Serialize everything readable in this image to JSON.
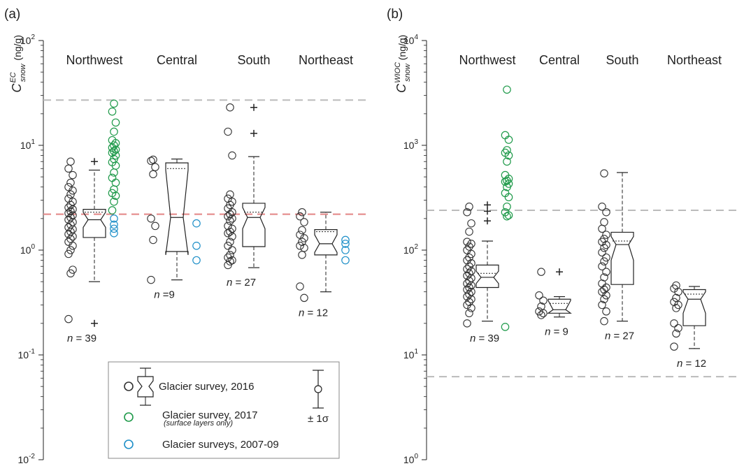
{
  "chart_data": [
    {
      "panel_label": "(a)",
      "type": "box-scatter",
      "ylabel_symbol": "C",
      "ylabel_sub": "snow",
      "ylabel_sup": "EC",
      "ylabel_unit": "(ng/g)",
      "yscale": "log",
      "ylim": [
        0.01,
        100
      ],
      "y_ticks": [
        {
          "base": "10",
          "exp": "-2"
        },
        {
          "base": "10",
          "exp": "-1"
        },
        {
          "base": "10",
          "exp": "0"
        },
        {
          "base": "10",
          "exp": "1"
        },
        {
          "base": "10",
          "exp": "2"
        }
      ],
      "ref_lines": [
        {
          "value": 27,
          "color": "#bbbbbb"
        },
        {
          "value": 2.2,
          "color": "#bbbbbb"
        },
        {
          "value": 2.2,
          "color": "#e88a8a"
        }
      ],
      "regions": [
        {
          "name": "Northwest",
          "n_label": "n = 39",
          "pts2016": [
            7.0,
            6.0,
            5.2,
            4.4,
            4.0,
            3.7,
            3.4,
            3.1,
            2.9,
            2.7,
            2.55,
            2.45,
            2.35,
            2.25,
            2.15,
            2.05,
            1.95,
            1.85,
            1.75,
            1.65,
            1.58,
            1.5,
            1.42,
            1.35,
            1.28,
            1.2,
            1.1,
            1.0,
            0.92,
            0.65,
            0.6,
            0.22
          ],
          "box": {
            "q1": 1.32,
            "median": 1.95,
            "q3": 2.45,
            "mean": 2.3,
            "whisker_low": 0.5,
            "whisker_high": 5.8,
            "notch_low": 1.65,
            "notch_high": 2.3,
            "outliers": [
              7.0,
              0.2
            ]
          },
          "pts2017": [
            25.0,
            21.0,
            16.5,
            13.5,
            11.2,
            10.5,
            10.0,
            9.5,
            9.1,
            8.8,
            8.5,
            8.0,
            7.4,
            6.9,
            6.4,
            5.5,
            4.9,
            4.4,
            3.8,
            3.5,
            3.3,
            2.9,
            2.4
          ],
          "pts0709": [
            2.0,
            1.75,
            1.6,
            1.45
          ]
        },
        {
          "name": "Central",
          "n_label": "n =9",
          "pts2016": [
            7.3,
            7.1,
            6.2,
            5.3,
            2.0,
            1.7,
            1.25,
            0.52
          ],
          "box": {
            "q1": 0.97,
            "median": 2.05,
            "q3": 6.8,
            "mean": 6.0,
            "whisker_low": 0.52,
            "whisker_high": 7.4,
            "notch_low": 0.9,
            "notch_high": 5.8,
            "outliers": []
          },
          "pts2017": [],
          "pts0709": [
            1.8,
            1.1,
            0.8
          ]
        },
        {
          "name": "South",
          "n_label": "n = 27",
          "pts2016": [
            23.0,
            13.5,
            8.0,
            3.4,
            3.1,
            2.9,
            2.7,
            2.5,
            2.3,
            2.2,
            2.1,
            2.0,
            1.9,
            1.7,
            1.6,
            1.5,
            1.45,
            1.35,
            1.2,
            1.1,
            1.0,
            0.9,
            0.85,
            0.8,
            0.78,
            0.72
          ],
          "box": {
            "q1": 1.08,
            "median": 2.05,
            "q3": 2.8,
            "mean": 2.3,
            "whisker_low": 0.68,
            "whisker_high": 7.8,
            "notch_low": 1.6,
            "notch_high": 2.55,
            "outliers": [
              23.0,
              13.0
            ]
          },
          "pts2017": [],
          "pts0709": []
        },
        {
          "name": "Northeast",
          "n_label": "n = 12",
          "pts2016": [
            2.3,
            2.1,
            1.85,
            1.55,
            1.4,
            1.3,
            1.2,
            1.1,
            1.05,
            0.9,
            0.45,
            0.35
          ],
          "box": {
            "q1": 0.9,
            "median": 1.15,
            "q3": 1.57,
            "mean": 1.5,
            "whisker_low": 0.4,
            "whisker_high": 2.3,
            "notch_low": 0.95,
            "notch_high": 1.4,
            "outliers": []
          },
          "pts2017": [],
          "pts0709": [
            1.25,
            1.15,
            1.0,
            0.8
          ]
        }
      ]
    },
    {
      "panel_label": "(b)",
      "type": "box-scatter",
      "ylabel_symbol": "C",
      "ylabel_sub": "snow",
      "ylabel_sup": "WIOC",
      "ylabel_unit": "(ng/g)",
      "yscale": "log",
      "ylim": [
        1,
        10000
      ],
      "y_ticks": [
        {
          "base": "10",
          "exp": "0"
        },
        {
          "base": "10",
          "exp": "1"
        },
        {
          "base": "10",
          "exp": "2"
        },
        {
          "base": "10",
          "exp": "3"
        },
        {
          "base": "10",
          "exp": "4"
        }
      ],
      "ref_lines": [
        {
          "value": 240,
          "color": "#bbbbbb"
        },
        {
          "value": 6.2,
          "color": "#bbbbbb"
        }
      ],
      "regions": [
        {
          "name": "Northwest",
          "n_label": "n = 39",
          "pts2016": [
            260,
            230,
            180,
            150,
            120,
            115,
            108,
            100,
            92,
            85,
            80,
            75,
            70,
            66,
            63,
            60,
            57,
            54,
            51,
            48,
            46,
            44,
            42,
            40,
            38,
            36,
            34,
            32,
            30,
            28,
            25,
            20
          ],
          "box": {
            "q1": 44,
            "median": 55,
            "q3": 72,
            "mean": 60,
            "whisker_low": 21,
            "whisker_high": 122,
            "notch_low": 48,
            "notch_high": 63,
            "outliers": [
              270,
              235,
              190
            ]
          },
          "pts2017": [
            3400,
            1250,
            1130,
            900,
            850,
            800,
            700,
            520,
            480,
            460,
            450,
            430,
            400,
            350,
            320,
            260,
            230,
            215,
            210,
            18.5
          ],
          "pts0709": []
        },
        {
          "name": "Central",
          "n_label": "n = 9",
          "pts2016": [
            62,
            37,
            33,
            29,
            26,
            25,
            24
          ],
          "box": {
            "q1": 25,
            "median": 27,
            "q3": 34,
            "mean": 31,
            "whisker_low": 23,
            "whisker_high": 36,
            "notch_low": 25,
            "notch_high": 33,
            "outliers": [
              62
            ]
          },
          "pts2017": [],
          "pts0709": []
        },
        {
          "name": "South",
          "n_label": "n = 27",
          "pts2016": [
            540,
            260,
            230,
            185,
            160,
            140,
            128,
            120,
            112,
            105,
            95,
            85,
            78,
            70,
            62,
            55,
            48,
            44,
            42,
            40,
            37,
            34,
            30,
            26,
            21
          ],
          "box": {
            "q1": 47,
            "median": 113,
            "q3": 148,
            "mean": 122,
            "whisker_low": 21,
            "whisker_high": 550,
            "notch_low": 80,
            "notch_high": 135,
            "outliers": []
          },
          "pts2017": [],
          "pts0709": []
        },
        {
          "name": "Northeast",
          "n_label": "n = 12",
          "pts2016": [
            46,
            43,
            40,
            35,
            32,
            30,
            28,
            20,
            18,
            16,
            12
          ],
          "box": {
            "q1": 19,
            "median": 34,
            "q3": 42,
            "mean": 38,
            "whisker_low": 11.5,
            "whisker_high": 45,
            "notch_low": 25,
            "notch_high": 40,
            "outliers": []
          },
          "pts2017": [],
          "pts0709": []
        }
      ]
    }
  ],
  "legend": {
    "entries": [
      {
        "label": "Glacier survey, 2016",
        "note": "",
        "color": "#333333"
      },
      {
        "label": "Glacier survey, 2017",
        "note": "(surface layers only)",
        "color": "#1f9a4a"
      },
      {
        "label": "Glacier surveys, 2007-09",
        "note": "",
        "color": "#1e8fc8"
      }
    ],
    "sigma_label": "± 1σ"
  },
  "colors": {
    "pts2016": "#333333",
    "pts2017": "#1f9a4a",
    "pts0709": "#1e8fc8",
    "box": "#222222"
  }
}
